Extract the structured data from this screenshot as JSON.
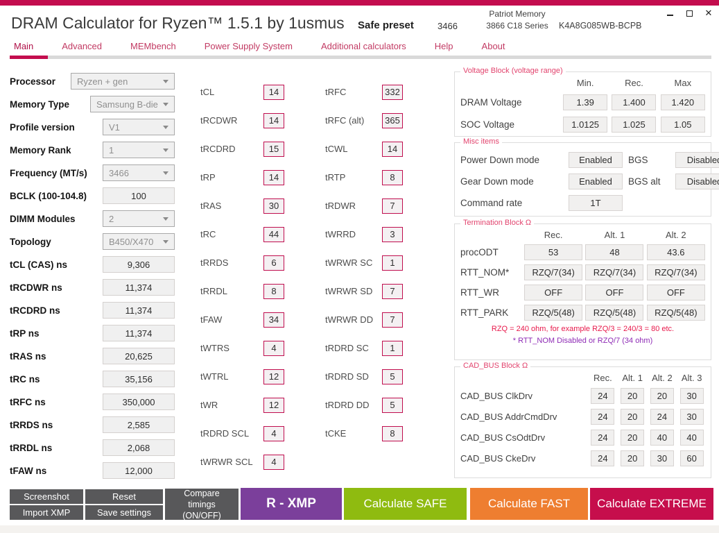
{
  "colors": {
    "accent": "#c30d4e",
    "nav_link": "#c23a63",
    "group_title": "#e2446e",
    "note_red": "#e8194b",
    "note_purple": "#8e2bb5",
    "button_dark": "#58585a",
    "button_xmp": "#7b3f9b",
    "button_safe": "#8fbb10",
    "button_fast": "#ee7e30",
    "button_extreme": "#c60e4c"
  },
  "window": {
    "title": "DRAM Calculator for Ryzen™ 1.5.1 by 1usmus",
    "preset_label": "Safe preset",
    "preset_frequency": "3466",
    "memory_name": "Patriot Memory",
    "memory_series": "3866 C18 Series",
    "memory_part": "K4A8G085WB-BCPB",
    "close_glyph": "✕"
  },
  "nav": {
    "items": [
      "Main",
      "Advanced",
      "MEMbench",
      "Power Supply System",
      "Additional calculators",
      "Help",
      "About"
    ],
    "active": "Main"
  },
  "sidebar": {
    "rows": [
      {
        "label": "Processor",
        "value": "Ryzen + gen",
        "type": "select"
      },
      {
        "label": "Memory Type",
        "value": "Samsung B-die",
        "type": "select"
      },
      {
        "label": "Profile version",
        "value": "V1",
        "type": "select"
      },
      {
        "label": "Memory Rank",
        "value": "1",
        "type": "select"
      },
      {
        "label": "Frequency (MT/s)",
        "value": "3466",
        "type": "select"
      },
      {
        "label": "BCLK (100-104.8)",
        "value": "100",
        "type": "input"
      },
      {
        "label": "DIMM Modules",
        "value": "2",
        "type": "select"
      },
      {
        "label": "Topology",
        "value": "B450/X470",
        "type": "select"
      }
    ],
    "ns_rows": [
      {
        "label": "tCL (CAS) ns",
        "value": "9,306"
      },
      {
        "label": "tRCDWR ns",
        "value": "11,374"
      },
      {
        "label": "tRCDRD ns",
        "value": "11,374"
      },
      {
        "label": "tRP ns",
        "value": "11,374"
      },
      {
        "label": "tRAS ns",
        "value": "20,625"
      },
      {
        "label": "tRC ns",
        "value": "35,156"
      },
      {
        "label": "tRFC ns",
        "value": "350,000"
      },
      {
        "label": "tRRDS ns",
        "value": "2,585"
      },
      {
        "label": "tRRDL ns",
        "value": "2,068"
      },
      {
        "label": "tFAW ns",
        "value": "12,000"
      }
    ]
  },
  "timings_col1": {
    "rows": [
      {
        "label": "tCL",
        "value": "14"
      },
      {
        "label": "tRCDWR",
        "value": "14"
      },
      {
        "label": "tRCDRD",
        "value": "15"
      },
      {
        "label": "tRP",
        "value": "14"
      },
      {
        "label": "tRAS",
        "value": "30"
      },
      {
        "label": "tRC",
        "value": "44"
      },
      {
        "label": "tRRDS",
        "value": "6"
      },
      {
        "label": "tRRDL",
        "value": "8"
      },
      {
        "label": "tFAW",
        "value": "34"
      },
      {
        "label": "tWTRS",
        "value": "4"
      },
      {
        "label": "tWTRL",
        "value": "12"
      },
      {
        "label": "tWR",
        "value": "12"
      },
      {
        "label": "tRDRD SCL",
        "value": "4"
      },
      {
        "label": "tWRWR SCL",
        "value": "4"
      }
    ]
  },
  "timings_col2": {
    "rows": [
      {
        "label": "tRFC",
        "value": "332"
      },
      {
        "label": "tRFC (alt)",
        "value": "365"
      },
      {
        "label": "tCWL",
        "value": "14"
      },
      {
        "label": "tRTP",
        "value": "8"
      },
      {
        "label": "tRDWR",
        "value": "7"
      },
      {
        "label": "tWRRD",
        "value": "3"
      },
      {
        "label": "tWRWR SC",
        "value": "1"
      },
      {
        "label": "tWRWR SD",
        "value": "7"
      },
      {
        "label": "tWRWR DD",
        "value": "7"
      },
      {
        "label": "tRDRD SC",
        "value": "1"
      },
      {
        "label": "tRDRD SD",
        "value": "5"
      },
      {
        "label": "tRDRD DD",
        "value": "5"
      },
      {
        "label": "tCKE",
        "value": "8"
      }
    ]
  },
  "voltage": {
    "title": "Voltage Block (voltage range)",
    "columns": [
      "Min.",
      "Rec.",
      "Max"
    ],
    "rows": [
      {
        "label": "DRAM Voltage",
        "values": [
          "1.39",
          "1.400",
          "1.420"
        ]
      },
      {
        "label": "SOC Voltage",
        "values": [
          "1.0125",
          "1.025",
          "1.05"
        ]
      }
    ]
  },
  "misc": {
    "title": "Misc items",
    "rows": [
      {
        "label": "Power Down mode",
        "value": "Enabled",
        "label2": "BGS",
        "value2": "Disabled"
      },
      {
        "label": "Gear Down mode",
        "value": "Enabled",
        "label2": "BGS alt",
        "value2": "Disabled"
      },
      {
        "label": "Command rate",
        "value": "1T"
      }
    ]
  },
  "termination": {
    "title": "Termination Block Ω",
    "columns": [
      "Rec.",
      "Alt. 1",
      "Alt. 2"
    ],
    "rows": [
      {
        "label": "procODT",
        "values": [
          "53",
          "48",
          "43.6"
        ]
      },
      {
        "label": "RTT_NOM*",
        "values": [
          "RZQ/7(34)",
          "RZQ/7(34)",
          "RZQ/7(34)"
        ]
      },
      {
        "label": "RTT_WR",
        "values": [
          "OFF",
          "OFF",
          "OFF"
        ]
      },
      {
        "label": "RTT_PARK",
        "values": [
          "RZQ/5(48)",
          "RZQ/5(48)",
          "RZQ/5(48)"
        ]
      }
    ],
    "note_red": "RZQ = 240 ohm, for example RZQ/3 = 240/3 = 80 etc.",
    "note_purple": "* RTT_NOM Disabled or RZQ/7 (34 ohm)"
  },
  "cad_bus": {
    "title": "CAD_BUS Block Ω",
    "columns": [
      "Rec.",
      "Alt. 1",
      "Alt. 2",
      "Alt. 3"
    ],
    "rows": [
      {
        "label": "CAD_BUS ClkDrv",
        "values": [
          "24",
          "20",
          "20",
          "30"
        ]
      },
      {
        "label": "CAD_BUS AddrCmdDrv",
        "values": [
          "24",
          "20",
          "24",
          "30"
        ]
      },
      {
        "label": "CAD_BUS CsOdtDrv",
        "values": [
          "24",
          "20",
          "40",
          "40"
        ]
      },
      {
        "label": "CAD_BUS CkeDrv",
        "values": [
          "24",
          "20",
          "30",
          "60"
        ]
      }
    ]
  },
  "footer": {
    "screenshot": "Screenshot",
    "import_xmp": "Import XMP",
    "reset": "Reset",
    "save_settings": "Save settings",
    "compare": "Compare timings (ON/OFF)",
    "rxmp": "R - XMP",
    "safe": "Calculate SAFE",
    "fast": "Calculate FAST",
    "extreme": "Calculate EXTREME"
  }
}
